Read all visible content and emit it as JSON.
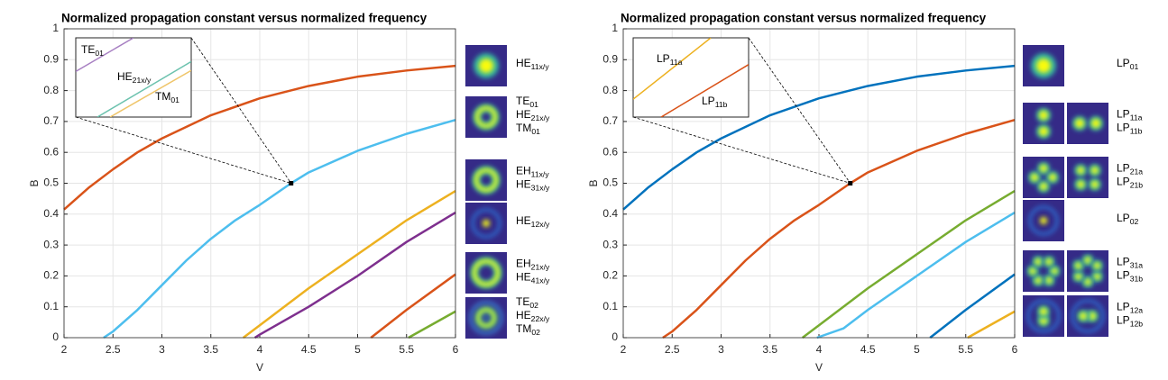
{
  "chart_data": [
    {
      "type": "line",
      "title": "Normalized propagation constant versus normalized frequency",
      "xlabel": "V",
      "ylabel": "B",
      "xlim": [
        2,
        6
      ],
      "ylim": [
        0,
        1
      ],
      "xticks": [
        2,
        2.5,
        3,
        3.5,
        4,
        4.5,
        5,
        5.5,
        6
      ],
      "yticks": [
        0,
        0.1,
        0.2,
        0.3,
        0.4,
        0.5,
        0.6,
        0.7,
        0.8,
        0.9,
        1
      ],
      "grid": true,
      "series": [
        {
          "color": "#d95319",
          "x": [
            2,
            2.25,
            2.5,
            2.75,
            3,
            3.5,
            4,
            4.5,
            5,
            5.5,
            6
          ],
          "values": [
            0.415,
            0.485,
            0.545,
            0.6,
            0.645,
            0.72,
            0.775,
            0.815,
            0.845,
            0.865,
            0.88
          ]
        },
        {
          "color": "#4dbeee",
          "x": [
            2.405,
            2.5,
            2.75,
            3,
            3.25,
            3.5,
            3.75,
            4,
            4.32,
            4.5,
            5,
            5.5,
            6
          ],
          "values": [
            0,
            0.02,
            0.09,
            0.17,
            0.25,
            0.32,
            0.38,
            0.43,
            0.5,
            0.535,
            0.605,
            0.66,
            0.705
          ]
        },
        {
          "color": "#edb120",
          "x": [
            3.832,
            4,
            4.5,
            5,
            5.5,
            6
          ],
          "values": [
            0,
            0.04,
            0.16,
            0.27,
            0.38,
            0.475
          ]
        },
        {
          "color": "#7e2f8e",
          "x": [
            3.95,
            4,
            4.5,
            5,
            5.5,
            6
          ],
          "values": [
            0,
            0.01,
            0.1,
            0.2,
            0.31,
            0.405
          ]
        },
        {
          "color": "#d95319",
          "x": [
            5.136,
            5.5,
            6
          ],
          "values": [
            0,
            0.09,
            0.205
          ]
        },
        {
          "color": "#77ac30",
          "x": [
            5.52,
            6
          ],
          "values": [
            0,
            0.085
          ]
        }
      ],
      "zoom_point": [
        4.32,
        0.5
      ],
      "inset": {
        "xlim": [
          4.318,
          4.322
        ],
        "ylim": [
          0.4996,
          0.5004
        ],
        "series": [
          {
            "color": "#a77fc2",
            "x": [
              4.318,
              4.32
            ],
            "values": [
              0.50006,
              0.5004
            ]
          },
          {
            "color": "#6cc2ae",
            "x": [
              4.31875,
              4.322
            ],
            "values": [
              0.4996,
              0.50016
            ]
          },
          {
            "color": "#efc56a",
            "x": [
              4.31919,
              4.322
            ],
            "values": [
              0.4996,
              0.50007
            ]
          }
        ],
        "labels": [
          {
            "text": "TE",
            "sub": "01"
          },
          {
            "text": "HE",
            "sub": "21x/y"
          },
          {
            "text": "TM",
            "sub": "01"
          }
        ]
      },
      "mode_labels": [
        [
          {
            "text": "HE",
            "sub": "11x/y"
          }
        ],
        [
          {
            "text": "TE",
            "sub": "01"
          },
          {
            "text": "HE",
            "sub": "21x/y"
          },
          {
            "text": "TM",
            "sub": "01"
          }
        ],
        [
          {
            "text": "EH",
            "sub": "11x/y"
          },
          {
            "text": "HE",
            "sub": "31x/y"
          }
        ],
        [
          {
            "text": "HE",
            "sub": "12x/y"
          }
        ],
        [
          {
            "text": "EH",
            "sub": "21x/y"
          },
          {
            "text": "HE",
            "sub": "41x/y"
          }
        ],
        [
          {
            "text": "TE",
            "sub": "02"
          },
          {
            "text": "HE",
            "sub": "22x/y"
          },
          {
            "text": "TM",
            "sub": "02"
          }
        ]
      ]
    },
    {
      "type": "line",
      "title": "Normalized propagation constant versus normalized frequency",
      "xlabel": "V",
      "ylabel": "B",
      "xlim": [
        2,
        6
      ],
      "ylim": [
        0,
        1
      ],
      "xticks": [
        2,
        2.5,
        3,
        3.5,
        4,
        4.5,
        5,
        5.5,
        6
      ],
      "yticks": [
        0,
        0.1,
        0.2,
        0.3,
        0.4,
        0.5,
        0.6,
        0.7,
        0.8,
        0.9,
        1
      ],
      "grid": true,
      "series": [
        {
          "color": "#0072bd",
          "x": [
            2,
            2.25,
            2.5,
            2.75,
            3,
            3.5,
            4,
            4.5,
            5,
            5.5,
            6
          ],
          "values": [
            0.415,
            0.485,
            0.545,
            0.6,
            0.645,
            0.72,
            0.775,
            0.815,
            0.845,
            0.865,
            0.88
          ]
        },
        {
          "color": "#d95319",
          "x": [
            2.405,
            2.5,
            2.75,
            3,
            3.25,
            3.5,
            3.75,
            4,
            4.32,
            4.5,
            5,
            5.5,
            6
          ],
          "values": [
            0,
            0.02,
            0.09,
            0.17,
            0.25,
            0.32,
            0.38,
            0.43,
            0.5,
            0.535,
            0.605,
            0.66,
            0.705
          ]
        },
        {
          "color": "#77ac30",
          "x": [
            3.832,
            4,
            4.5,
            5,
            5.5,
            6
          ],
          "values": [
            0,
            0.04,
            0.16,
            0.27,
            0.38,
            0.475
          ]
        },
        {
          "color": "#4dbeee",
          "x": [
            3.98,
            4.25,
            4.5,
            5,
            5.5,
            6
          ],
          "values": [
            0,
            0.03,
            0.09,
            0.2,
            0.31,
            0.405
          ]
        },
        {
          "color": "#0072bd",
          "x": [
            5.136,
            5.5,
            6
          ],
          "values": [
            0,
            0.09,
            0.205
          ]
        },
        {
          "color": "#edb120",
          "x": [
            5.52,
            6
          ],
          "values": [
            0,
            0.085
          ]
        }
      ],
      "zoom_point": [
        4.32,
        0.5
      ],
      "inset": {
        "xlim": [
          4.318,
          4.322
        ],
        "ylim": [
          0.4996,
          0.5004
        ],
        "series": [
          {
            "color": "#edb120",
            "x": [
              4.318,
              4.32069
            ],
            "values": [
              0.49978,
              0.5004
            ]
          },
          {
            "color": "#d95319",
            "x": [
              4.31897,
              4.322
            ],
            "values": [
              0.4996,
              0.50013
            ]
          }
        ],
        "labels": [
          {
            "text": "LP",
            "sub": "11a"
          },
          {
            "text": "LP",
            "sub": "11b"
          }
        ]
      },
      "mode_labels": [
        [
          {
            "text": "LP",
            "sub": "01"
          }
        ],
        [
          {
            "text": "LP",
            "sub": "11a"
          },
          {
            "text": "LP",
            "sub": "11b"
          }
        ],
        [
          {
            "text": "LP",
            "sub": "21a"
          },
          {
            "text": "LP",
            "sub": "21b"
          }
        ],
        [
          {
            "text": "LP",
            "sub": "02"
          }
        ],
        [
          {
            "text": "LP",
            "sub": "31a"
          },
          {
            "text": "LP",
            "sub": "31b"
          }
        ],
        [
          {
            "text": "LP",
            "sub": "12a"
          },
          {
            "text": "LP",
            "sub": "12b"
          }
        ]
      ]
    }
  ]
}
